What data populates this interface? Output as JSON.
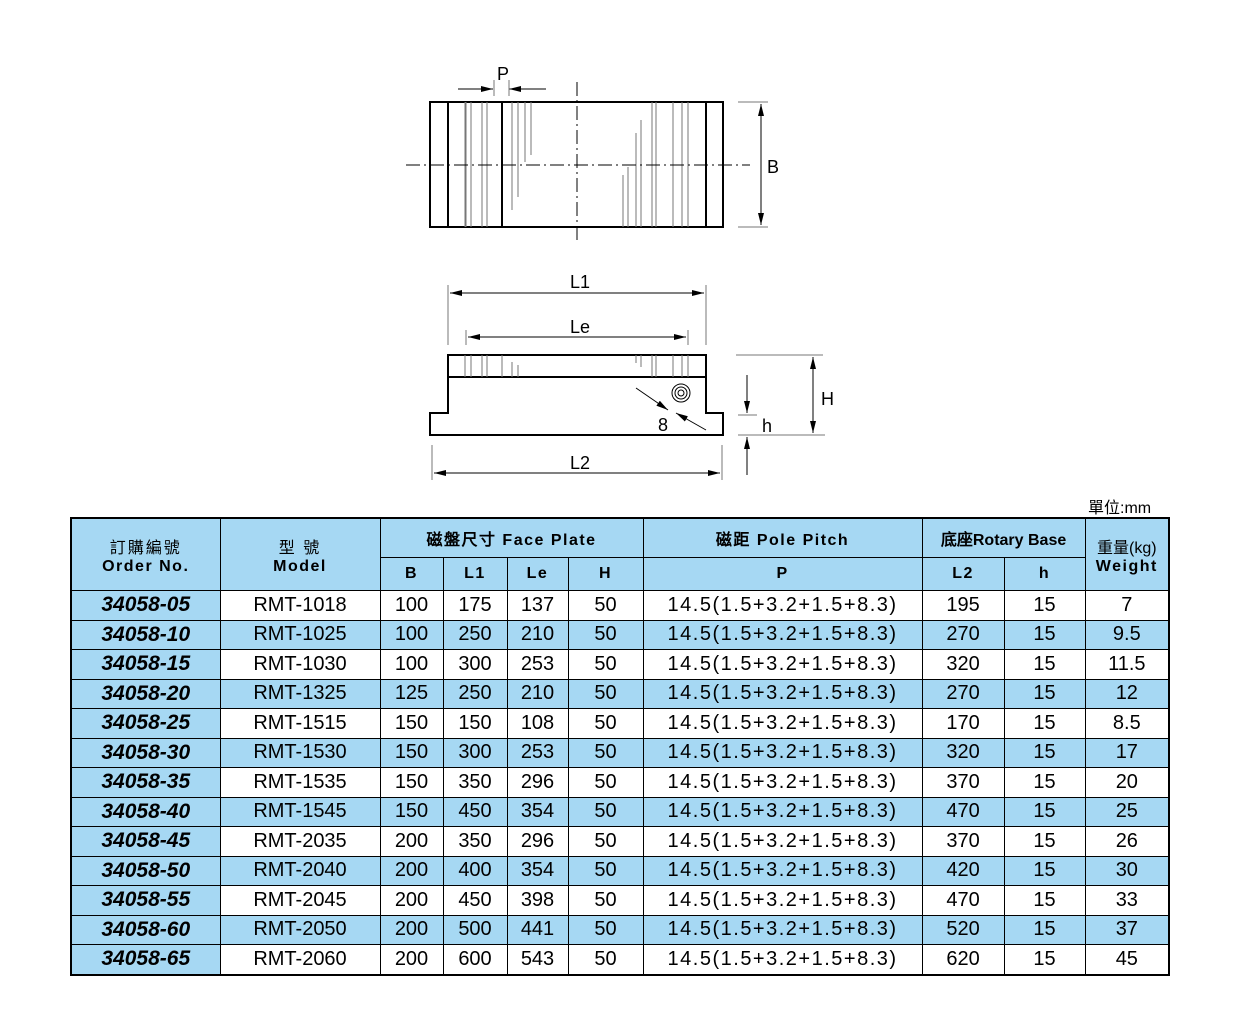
{
  "diagram": {
    "labels": {
      "P": "P",
      "B": "B",
      "L1": "L1",
      "Le": "Le",
      "H": "H",
      "h": "h",
      "L2": "L2",
      "bolt": "8"
    }
  },
  "unit_label": "單位:mm",
  "colors": {
    "header_bg": "#a6d8f3",
    "alt_row_bg": "#a6d8f3"
  },
  "table": {
    "headers": {
      "order_cn": "訂購編號",
      "order_en": "Order No.",
      "model_cn": "型 號",
      "model_en": "Model",
      "face_plate": "磁盤尺寸 Face Plate",
      "pole_pitch": "磁距 Pole Pitch",
      "rotary_base": "底座Rotary Base",
      "weight_cn": "重量(kg)",
      "weight_en": "Weight",
      "B": "B",
      "L1": "L1",
      "Le": "Le",
      "H": "H",
      "P": "P",
      "L2": "L2",
      "h": "h"
    },
    "rows": [
      [
        "34058-05",
        "RMT-1018",
        "100",
        "175",
        "137",
        "50",
        "14.5(1.5+3.2+1.5+8.3)",
        "195",
        "15",
        "7"
      ],
      [
        "34058-10",
        "RMT-1025",
        "100",
        "250",
        "210",
        "50",
        "14.5(1.5+3.2+1.5+8.3)",
        "270",
        "15",
        "9.5"
      ],
      [
        "34058-15",
        "RMT-1030",
        "100",
        "300",
        "253",
        "50",
        "14.5(1.5+3.2+1.5+8.3)",
        "320",
        "15",
        "11.5"
      ],
      [
        "34058-20",
        "RMT-1325",
        "125",
        "250",
        "210",
        "50",
        "14.5(1.5+3.2+1.5+8.3)",
        "270",
        "15",
        "12"
      ],
      [
        "34058-25",
        "RMT-1515",
        "150",
        "150",
        "108",
        "50",
        "14.5(1.5+3.2+1.5+8.3)",
        "170",
        "15",
        "8.5"
      ],
      [
        "34058-30",
        "RMT-1530",
        "150",
        "300",
        "253",
        "50",
        "14.5(1.5+3.2+1.5+8.3)",
        "320",
        "15",
        "17"
      ],
      [
        "34058-35",
        "RMT-1535",
        "150",
        "350",
        "296",
        "50",
        "14.5(1.5+3.2+1.5+8.3)",
        "370",
        "15",
        "20"
      ],
      [
        "34058-40",
        "RMT-1545",
        "150",
        "450",
        "354",
        "50",
        "14.5(1.5+3.2+1.5+8.3)",
        "470",
        "15",
        "25"
      ],
      [
        "34058-45",
        "RMT-2035",
        "200",
        "350",
        "296",
        "50",
        "14.5(1.5+3.2+1.5+8.3)",
        "370",
        "15",
        "26"
      ],
      [
        "34058-50",
        "RMT-2040",
        "200",
        "400",
        "354",
        "50",
        "14.5(1.5+3.2+1.5+8.3)",
        "420",
        "15",
        "30"
      ],
      [
        "34058-55",
        "RMT-2045",
        "200",
        "450",
        "398",
        "50",
        "14.5(1.5+3.2+1.5+8.3)",
        "470",
        "15",
        "33"
      ],
      [
        "34058-60",
        "RMT-2050",
        "200",
        "500",
        "441",
        "50",
        "14.5(1.5+3.2+1.5+8.3)",
        "520",
        "15",
        "37"
      ],
      [
        "34058-65",
        "RMT-2060",
        "200",
        "600",
        "543",
        "50",
        "14.5(1.5+3.2+1.5+8.3)",
        "620",
        "15",
        "45"
      ]
    ]
  }
}
